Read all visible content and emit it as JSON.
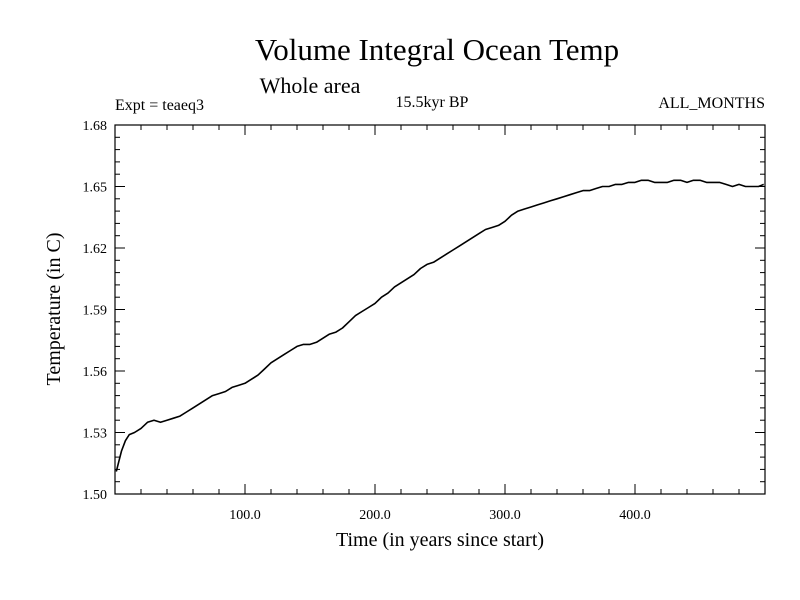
{
  "chart_data": {
    "type": "line",
    "title": "Volume Integral Ocean Temp",
    "subtitle": "Whole area",
    "experiment_label": "Expt = teaeq3",
    "period_label": "15.5kyr BP",
    "season_label": "ALL_MONTHS",
    "xlabel": "Time (in years since start)",
    "ylabel": "Temperature (in C)",
    "xlim": [
      0,
      500
    ],
    "ylim": [
      1.5,
      1.68
    ],
    "x_ticks": [
      100,
      200,
      300,
      400
    ],
    "x_tick_labels": [
      "100.0",
      "200.0",
      "300.0",
      "400.0"
    ],
    "y_ticks": [
      1.5,
      1.53,
      1.56,
      1.59,
      1.62,
      1.65,
      1.68
    ],
    "y_tick_labels": [
      "1.50",
      "1.53",
      "1.56",
      "1.59",
      "1.62",
      "1.65",
      "1.68"
    ],
    "series": [
      {
        "name": "Volume integral ocean temperature",
        "color": "#000000",
        "x": [
          1,
          3,
          5,
          8,
          11,
          15,
          20,
          25,
          30,
          35,
          40,
          45,
          50,
          55,
          60,
          65,
          70,
          75,
          80,
          85,
          90,
          95,
          100,
          105,
          110,
          115,
          120,
          125,
          130,
          135,
          140,
          145,
          150,
          155,
          160,
          165,
          170,
          175,
          180,
          185,
          190,
          195,
          200,
          205,
          210,
          215,
          220,
          225,
          230,
          235,
          240,
          245,
          250,
          255,
          260,
          265,
          270,
          275,
          280,
          285,
          290,
          295,
          300,
          305,
          310,
          315,
          320,
          325,
          330,
          335,
          340,
          345,
          350,
          355,
          360,
          365,
          370,
          375,
          380,
          385,
          390,
          395,
          400,
          405,
          410,
          415,
          420,
          425,
          430,
          435,
          440,
          445,
          450,
          455,
          460,
          465,
          470,
          475,
          480,
          485,
          490,
          495,
          499
        ],
        "values": [
          1.511,
          1.516,
          1.521,
          1.526,
          1.529,
          1.53,
          1.532,
          1.535,
          1.536,
          1.535,
          1.536,
          1.537,
          1.538,
          1.54,
          1.542,
          1.544,
          1.546,
          1.548,
          1.549,
          1.55,
          1.552,
          1.553,
          1.554,
          1.556,
          1.558,
          1.561,
          1.564,
          1.566,
          1.568,
          1.57,
          1.572,
          1.573,
          1.573,
          1.574,
          1.576,
          1.578,
          1.579,
          1.581,
          1.584,
          1.587,
          1.589,
          1.591,
          1.593,
          1.596,
          1.598,
          1.601,
          1.603,
          1.605,
          1.607,
          1.61,
          1.612,
          1.613,
          1.615,
          1.617,
          1.619,
          1.621,
          1.623,
          1.625,
          1.627,
          1.629,
          1.63,
          1.631,
          1.633,
          1.636,
          1.638,
          1.639,
          1.64,
          1.641,
          1.642,
          1.643,
          1.644,
          1.645,
          1.646,
          1.647,
          1.648,
          1.648,
          1.649,
          1.65,
          1.65,
          1.651,
          1.651,
          1.652,
          1.652,
          1.653,
          1.653,
          1.652,
          1.652,
          1.652,
          1.653,
          1.653,
          1.652,
          1.653,
          1.653,
          1.652,
          1.652,
          1.652,
          1.651,
          1.65,
          1.651,
          1.65,
          1.65,
          1.65,
          1.651
        ]
      }
    ]
  }
}
